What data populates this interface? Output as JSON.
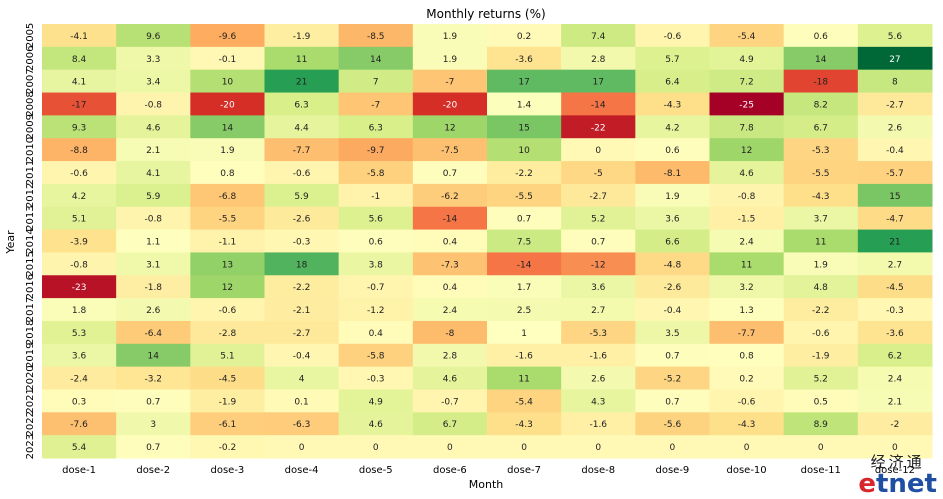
{
  "chart_data": {
    "type": "heatmap",
    "title": "Monthly returns (%)",
    "xlabel": "Month",
    "ylabel": "Year",
    "colormap": "RdYlGn",
    "color_range": [
      -25,
      27
    ],
    "categories": [
      "dose-1",
      "dose-2",
      "dose-3",
      "dose-4",
      "dose-5",
      "dose-6",
      "dose-7",
      "dose-8",
      "dose-9",
      "dose-10",
      "dose-11",
      "dose-12"
    ],
    "rows": [
      "2005",
      "2006",
      "2007",
      "2008",
      "2009",
      "2010",
      "2011",
      "2012",
      "2013",
      "2014",
      "2015",
      "2016",
      "2017",
      "2018",
      "2019",
      "2020",
      "2021",
      "2022",
      "2023"
    ],
    "values": [
      [
        -4.1,
        9.6,
        -9.6,
        -1.9,
        -8.5,
        1.9,
        0.2,
        7.4,
        -0.6,
        -5.4,
        0.6,
        5.6
      ],
      [
        8.4,
        3.3,
        -0.1,
        11,
        14,
        1.9,
        -3.6,
        2.8,
        5.7,
        4.9,
        14,
        27
      ],
      [
        4.1,
        3.4,
        10,
        21,
        7,
        -7,
        17,
        17,
        6.4,
        7.2,
        -18,
        8
      ],
      [
        -17,
        -0.8,
        -20,
        6.3,
        -7,
        -20,
        1.4,
        -14,
        -4.3,
        -25,
        8.2,
        -2.7
      ],
      [
        9.3,
        4.6,
        14,
        4.4,
        6.3,
        12,
        15,
        -22,
        4.2,
        7.8,
        6.7,
        2.6
      ],
      [
        -8.8,
        2.1,
        1.9,
        -7.7,
        -9.7,
        -7.5,
        10,
        0,
        0.6,
        12,
        -5.3,
        -0.4
      ],
      [
        -0.6,
        4.1,
        0.8,
        -0.6,
        -5.8,
        0.7,
        -2.2,
        -5,
        -8.1,
        4.6,
        -5.5,
        -5.7
      ],
      [
        4.2,
        5.9,
        -6.8,
        5.9,
        -1,
        -6.2,
        -5.5,
        -2.7,
        1.9,
        -0.8,
        -4.3,
        15
      ],
      [
        5.1,
        -0.8,
        -5.5,
        -2.6,
        5.6,
        -14,
        0.7,
        5.2,
        3.6,
        -1.5,
        3.7,
        -4.7
      ],
      [
        -3.9,
        1.1,
        -1.1,
        -0.3,
        0.6,
        0.4,
        7.5,
        0.7,
        6.6,
        2.4,
        11,
        21
      ],
      [
        -0.8,
        3.1,
        13,
        18,
        3.8,
        -7.3,
        -14,
        -12,
        -4.8,
        11,
        1.9,
        2.7
      ],
      [
        -23,
        -1.8,
        12,
        -2.2,
        -0.7,
        0.4,
        1.7,
        3.6,
        -2.6,
        3.2,
        4.8,
        -4.5
      ],
      [
        1.8,
        2.6,
        -0.6,
        -2.1,
        -1.2,
        2.4,
        2.5,
        2.7,
        -0.4,
        1.3,
        -2.2,
        -0.3
      ],
      [
        5.3,
        -6.4,
        -2.8,
        -2.7,
        0.4,
        -8,
        1,
        -5.3,
        3.5,
        -7.7,
        -0.6,
        -3.6
      ],
      [
        3.6,
        14,
        5.1,
        -0.4,
        -5.8,
        2.8,
        -1.6,
        -1.6,
        0.7,
        0.8,
        -1.9,
        6.2
      ],
      [
        -2.4,
        -3.2,
        -4.5,
        4,
        -0.3,
        4.6,
        11,
        2.6,
        -5.2,
        0.2,
        5.2,
        2.4
      ],
      [
        0.3,
        0.7,
        -1.9,
        0.1,
        4.9,
        -0.7,
        -5.4,
        4.3,
        0.7,
        -0.6,
        0.5,
        2.1
      ],
      [
        -7.6,
        3,
        -6.1,
        -6.3,
        4.6,
        6.7,
        -4.3,
        -1.6,
        -5.6,
        -4.3,
        8.9,
        -2
      ],
      [
        5.4,
        0.7,
        -0.2,
        0,
        0,
        0,
        0,
        0,
        0,
        0,
        0,
        0
      ]
    ]
  },
  "watermark": {
    "chinese": "经济通",
    "logo_e": "e",
    "logo_rest": "tnet"
  }
}
